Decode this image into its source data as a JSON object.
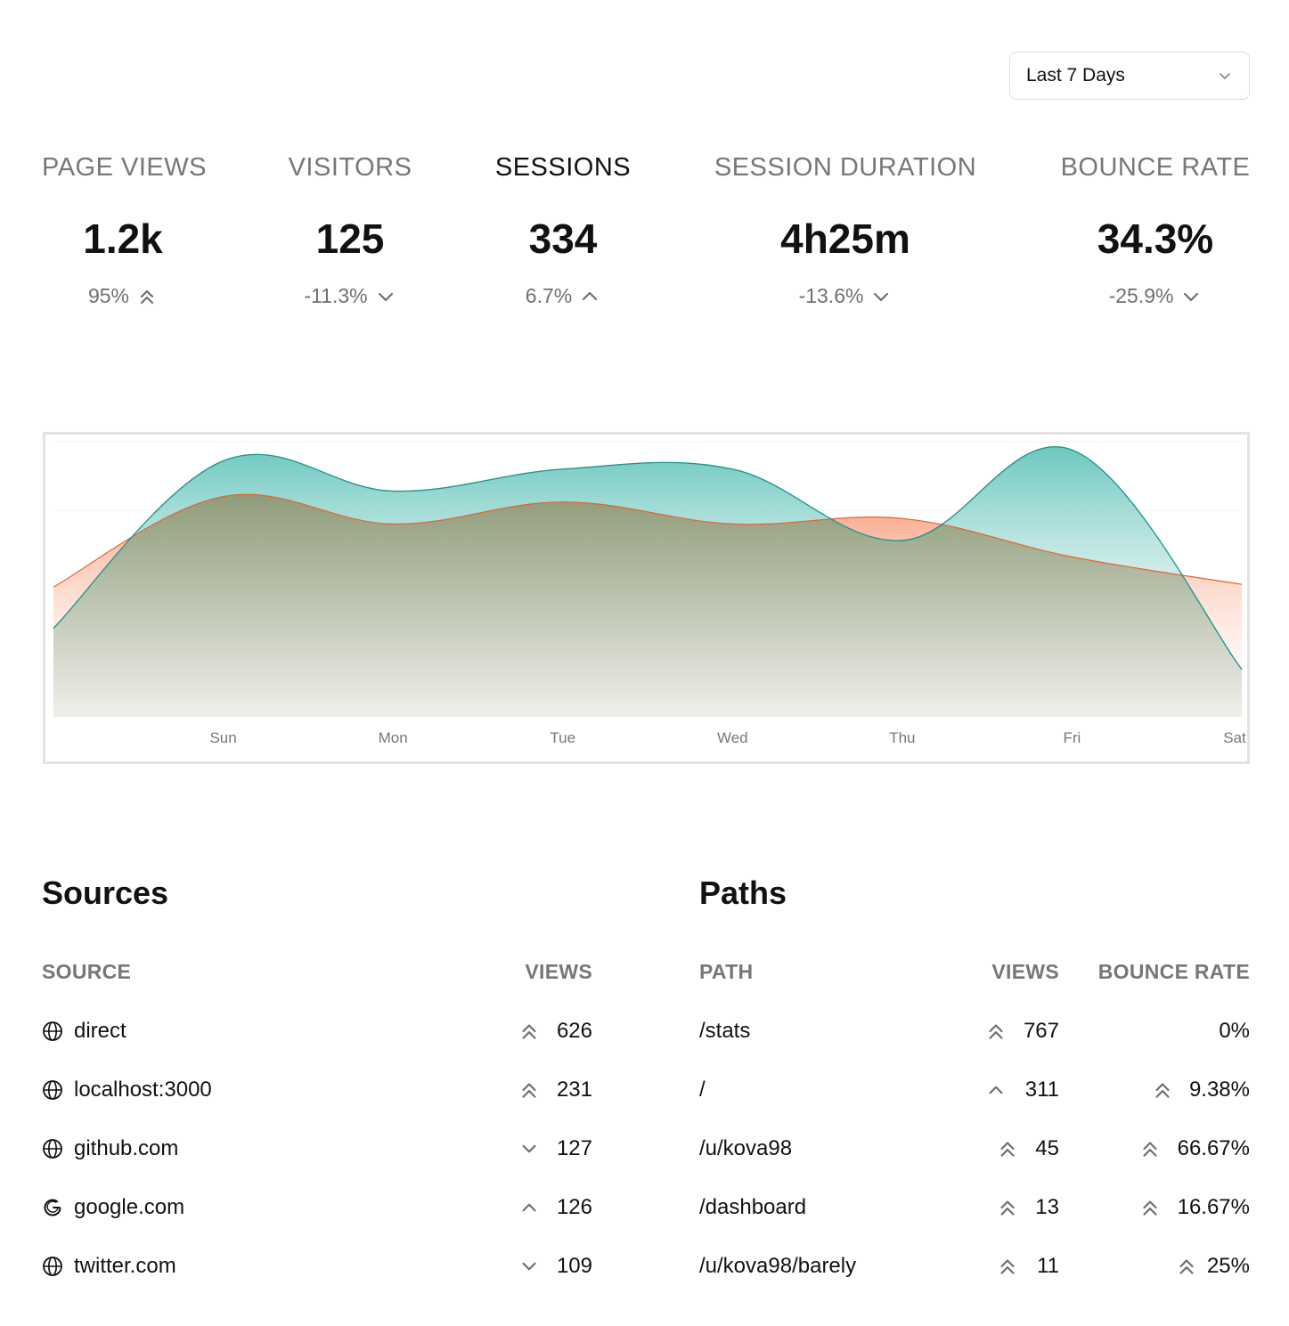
{
  "range_select": {
    "label": "Last 7 Days",
    "icon": "chevron-down-icon"
  },
  "metrics": [
    {
      "title": "PAGE VIEWS",
      "value": "1.2k",
      "change": "95%",
      "trend": "double-up",
      "active": false
    },
    {
      "title": "VISITORS",
      "value": "125",
      "change": "-11.3%",
      "trend": "down",
      "active": false
    },
    {
      "title": "SESSIONS",
      "value": "334",
      "change": "6.7%",
      "trend": "up",
      "active": true
    },
    {
      "title": "SESSION DURATION",
      "value": "4h25m",
      "change": "-13.6%",
      "trend": "down",
      "active": false
    },
    {
      "title": "BOUNCE RATE",
      "value": "34.3%",
      "change": "-25.9%",
      "trend": "down",
      "active": false
    }
  ],
  "chart_data": {
    "type": "area",
    "x": [
      "",
      "Sun",
      "Mon",
      "Tue",
      "Wed",
      "Thu",
      "Fri",
      "Sat"
    ],
    "tick_labels": [
      "Sun",
      "Mon",
      "Tue",
      "Wed",
      "Thu",
      "Fri",
      "Sat"
    ],
    "ylim": [
      0,
      100
    ],
    "grid": true,
    "series": [
      {
        "color": "#e8622c",
        "fill": "#f7a98a",
        "values": [
          47,
          80,
          70,
          78,
          70,
          72,
          58,
          48
        ]
      },
      {
        "color": "#1e9a8e",
        "fill": "#7ecdc4",
        "values": [
          32,
          93,
          82,
          90,
          90,
          64,
          97,
          17
        ]
      }
    ]
  },
  "sources": {
    "title": "Sources",
    "headers": {
      "source": "SOURCE",
      "views": "VIEWS"
    },
    "rows": [
      {
        "name": "direct",
        "icon": "globe-icon",
        "views": "626",
        "trend": "double-up"
      },
      {
        "name": "localhost:3000",
        "icon": "globe-icon",
        "views": "231",
        "trend": "double-up"
      },
      {
        "name": "github.com",
        "icon": "globe-icon",
        "views": "127",
        "trend": "down"
      },
      {
        "name": "google.com",
        "icon": "google-icon",
        "views": "126",
        "trend": "up"
      },
      {
        "name": "twitter.com",
        "icon": "globe-icon",
        "views": "109",
        "trend": "down"
      }
    ]
  },
  "paths": {
    "title": "Paths",
    "headers": {
      "path": "PATH",
      "views": "VIEWS",
      "bounce": "BOUNCE RATE"
    },
    "rows": [
      {
        "path": "/stats",
        "views": "767",
        "views_trend": "double-up",
        "bounce": "0%",
        "bounce_trend": "none"
      },
      {
        "path": "/",
        "views": "311",
        "views_trend": "up",
        "bounce": "9.38%",
        "bounce_trend": "double-up"
      },
      {
        "path": "/u/kova98",
        "views": "45",
        "views_trend": "double-up",
        "bounce": "66.67%",
        "bounce_trend": "double-up"
      },
      {
        "path": "/dashboard",
        "views": "13",
        "views_trend": "double-up",
        "bounce": "16.67%",
        "bounce_trend": "double-up"
      },
      {
        "path": "/u/kova98/barely",
        "views": "11",
        "views_trend": "double-up",
        "bounce": "25%",
        "bounce_trend": "double-up"
      }
    ]
  }
}
